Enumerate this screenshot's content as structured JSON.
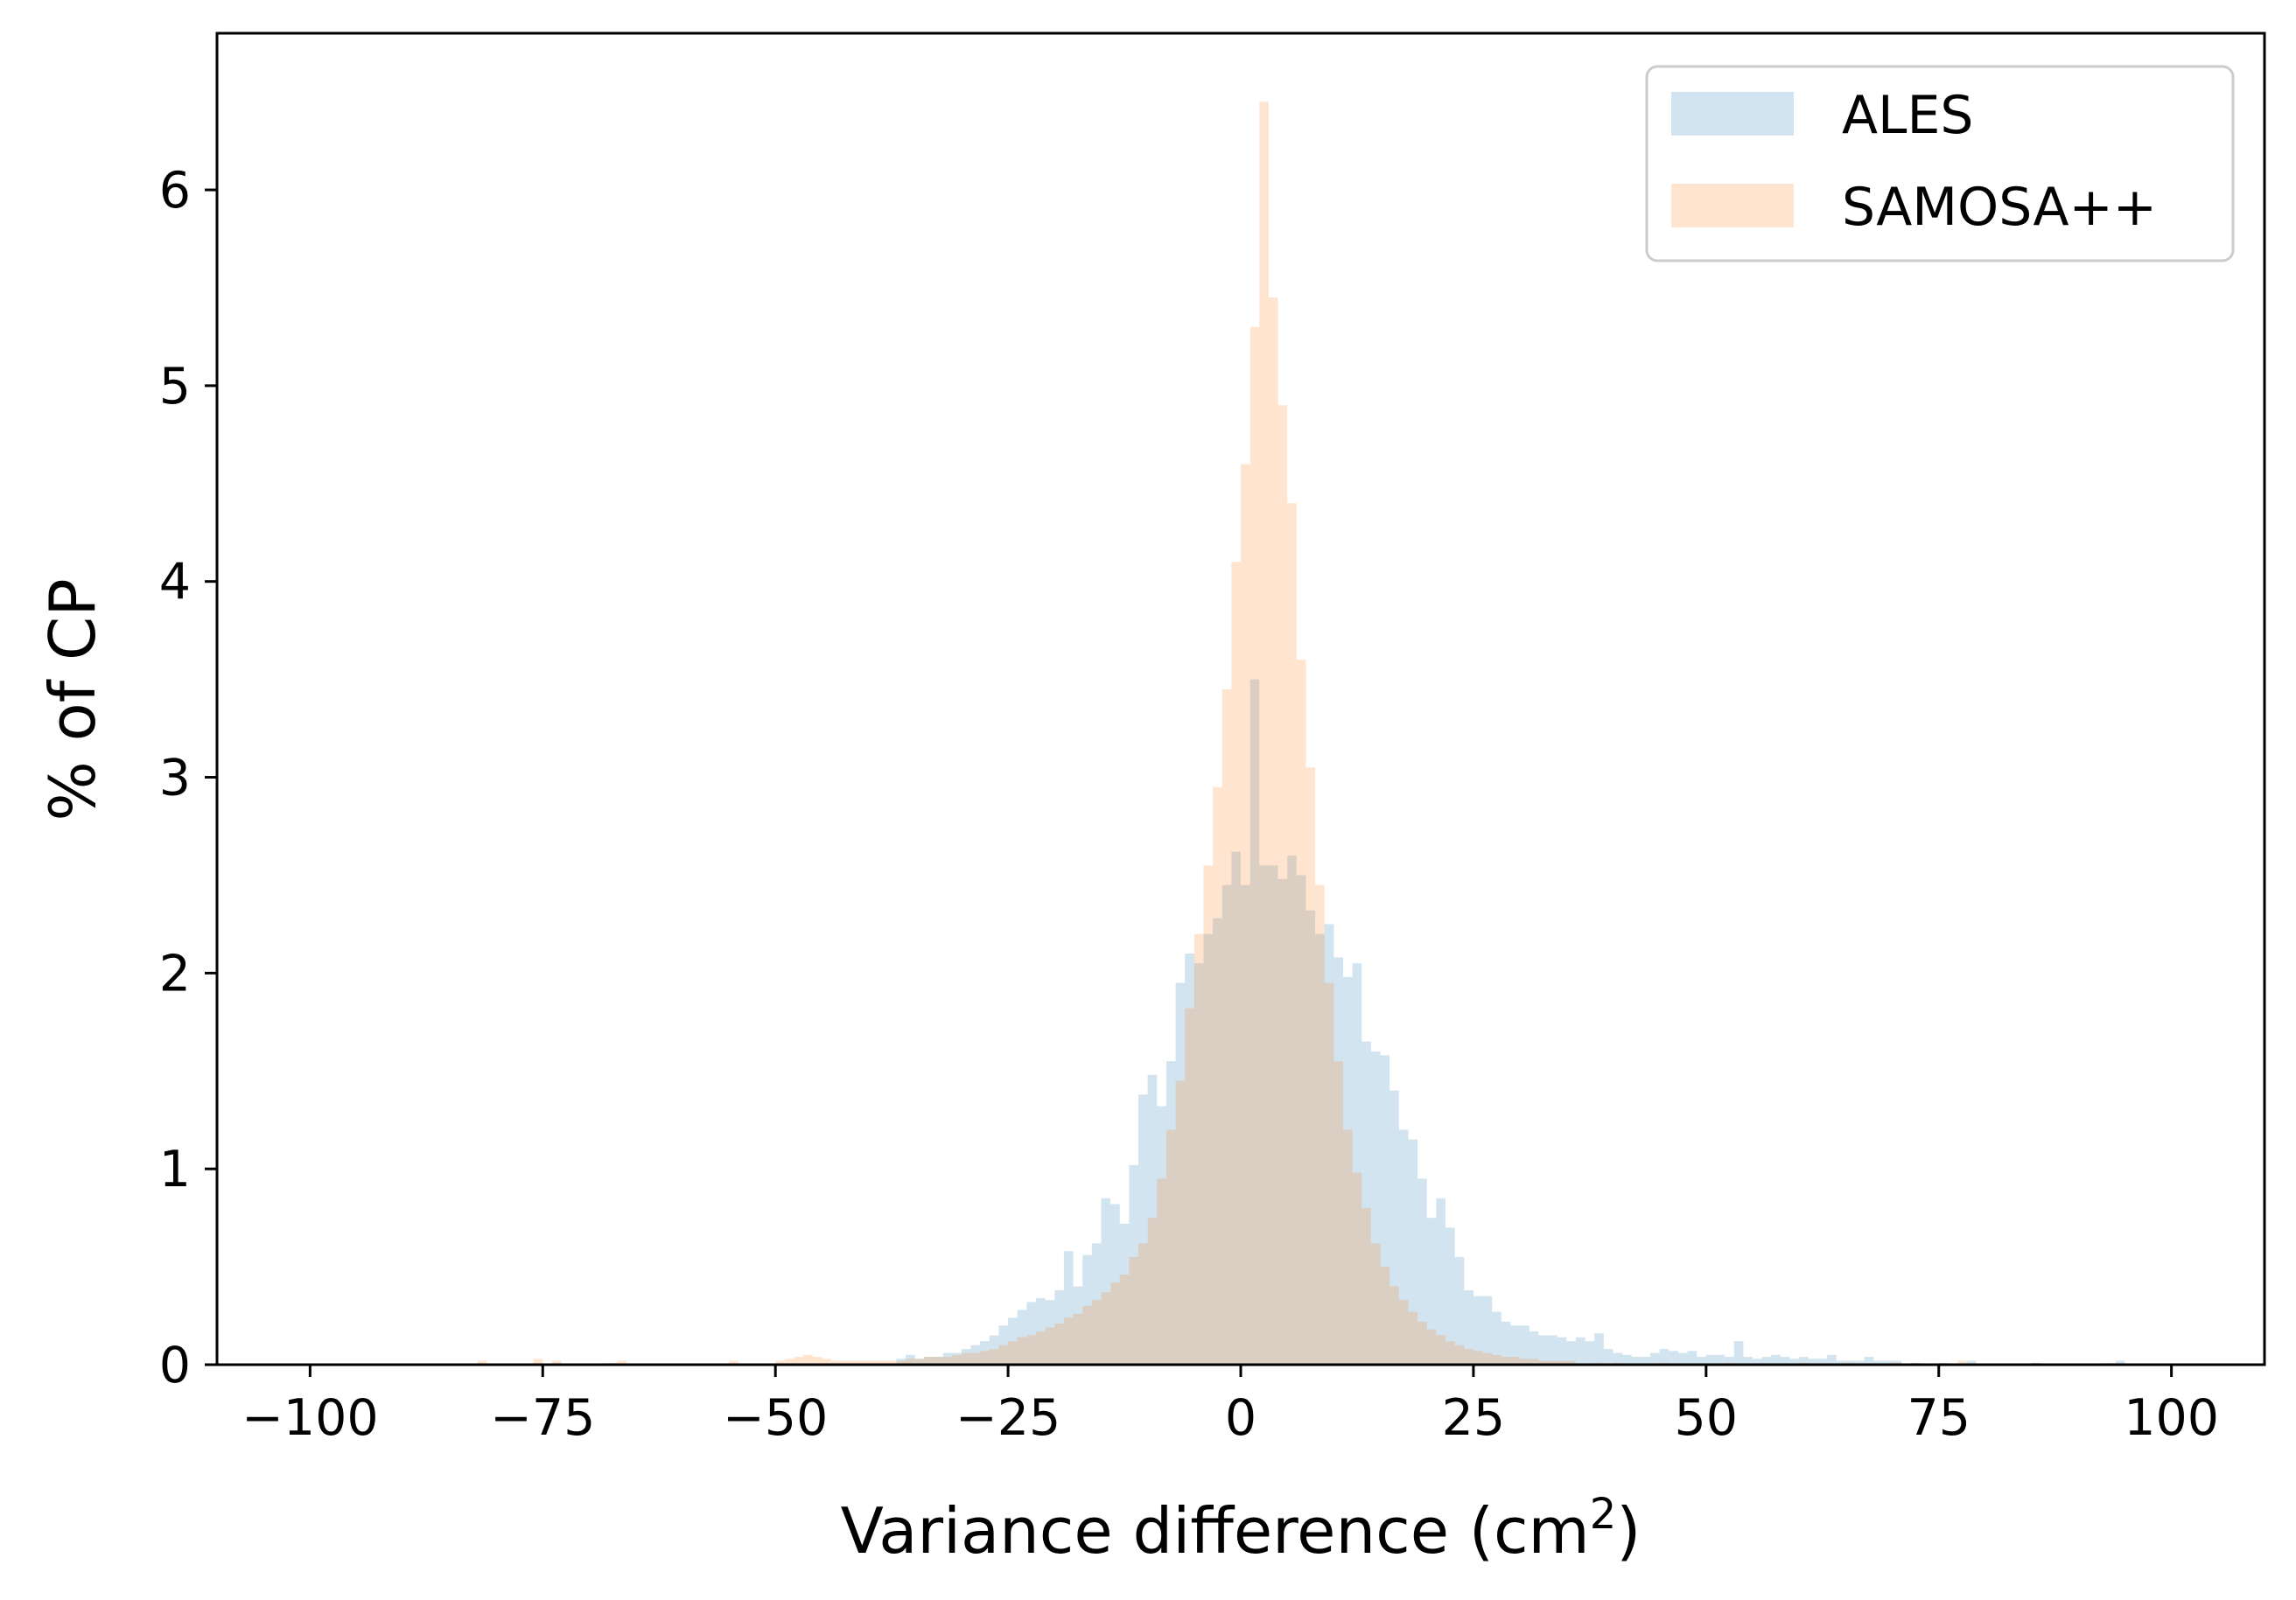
{
  "chart_data": {
    "type": "bar",
    "subtype": "overlapping-histogram",
    "title": "",
    "xlabel": "Variance difference (cm",
    "xlabel_superscript": "2",
    "xlabel_suffix": ")",
    "ylabel": "% of CP",
    "xlim": [
      -110,
      110
    ],
    "ylim": [
      0,
      6.8
    ],
    "xticks": [
      -100,
      -75,
      -50,
      -25,
      0,
      25,
      50,
      75,
      100
    ],
    "xtick_labels": [
      "−100",
      "−75",
      "−50",
      "−25",
      "0",
      "25",
      "50",
      "75",
      "100"
    ],
    "yticks": [
      0,
      1,
      2,
      3,
      4,
      5,
      6
    ],
    "ytick_labels": [
      "0",
      "1",
      "2",
      "3",
      "4",
      "5",
      "6"
    ],
    "grid": false,
    "legend_position": "top-right",
    "bin_width": 1,
    "series": [
      {
        "name": "ALES",
        "color": "#1f77b4",
        "opacity": 0.2,
        "bins": [
          [
            -37,
            0.03
          ],
          [
            -36,
            0.05
          ],
          [
            -35,
            0.03
          ],
          [
            -34,
            0.04
          ],
          [
            -33,
            0.04
          ],
          [
            -32,
            0.06
          ],
          [
            -31,
            0.06
          ],
          [
            -30,
            0.08
          ],
          [
            -29,
            0.1
          ],
          [
            -28,
            0.12
          ],
          [
            -27,
            0.15
          ],
          [
            -26,
            0.2
          ],
          [
            -25,
            0.24
          ],
          [
            -24,
            0.28
          ],
          [
            -23,
            0.32
          ],
          [
            -22,
            0.34
          ],
          [
            -21,
            0.33
          ],
          [
            -20,
            0.38
          ],
          [
            -19,
            0.58
          ],
          [
            -18,
            0.4
          ],
          [
            -17,
            0.56
          ],
          [
            -16,
            0.62
          ],
          [
            -15,
            0.85
          ],
          [
            -14,
            0.82
          ],
          [
            -13,
            0.72
          ],
          [
            -12,
            1.02
          ],
          [
            -11,
            1.38
          ],
          [
            -10,
            1.48
          ],
          [
            -9,
            1.32
          ],
          [
            -8,
            1.55
          ],
          [
            -7,
            1.95
          ],
          [
            -6,
            2.1
          ],
          [
            -5,
            2.05
          ],
          [
            -4,
            2.2
          ],
          [
            -3,
            2.28
          ],
          [
            -2,
            2.45
          ],
          [
            -1,
            2.62
          ],
          [
            0,
            2.45
          ],
          [
            1,
            3.5
          ],
          [
            2,
            2.55
          ],
          [
            3,
            2.55
          ],
          [
            4,
            2.48
          ],
          [
            5,
            2.6
          ],
          [
            6,
            2.5
          ],
          [
            7,
            2.32
          ],
          [
            8,
            2.2
          ],
          [
            9,
            2.25
          ],
          [
            10,
            2.08
          ],
          [
            11,
            1.98
          ],
          [
            12,
            2.05
          ],
          [
            13,
            1.65
          ],
          [
            14,
            1.6
          ],
          [
            15,
            1.58
          ],
          [
            16,
            1.4
          ],
          [
            17,
            1.2
          ],
          [
            18,
            1.15
          ],
          [
            19,
            0.95
          ],
          [
            20,
            0.75
          ],
          [
            21,
            0.85
          ],
          [
            22,
            0.7
          ],
          [
            23,
            0.55
          ],
          [
            24,
            0.38
          ],
          [
            25,
            0.35
          ],
          [
            26,
            0.35
          ],
          [
            27,
            0.27
          ],
          [
            28,
            0.22
          ],
          [
            29,
            0.2
          ],
          [
            30,
            0.2
          ],
          [
            31,
            0.17
          ],
          [
            32,
            0.15
          ],
          [
            33,
            0.15
          ],
          [
            34,
            0.14
          ],
          [
            35,
            0.12
          ],
          [
            36,
            0.14
          ],
          [
            37,
            0.12
          ],
          [
            38,
            0.16
          ],
          [
            39,
            0.08
          ],
          [
            40,
            0.06
          ],
          [
            41,
            0.05
          ],
          [
            42,
            0.04
          ],
          [
            43,
            0.04
          ],
          [
            44,
            0.06
          ],
          [
            45,
            0.08
          ],
          [
            46,
            0.07
          ],
          [
            47,
            0.06
          ],
          [
            48,
            0.07
          ],
          [
            49,
            0.04
          ],
          [
            50,
            0.05
          ],
          [
            51,
            0.05
          ],
          [
            52,
            0.04
          ],
          [
            53,
            0.12
          ],
          [
            54,
            0.04
          ],
          [
            55,
            0.03
          ],
          [
            56,
            0.04
          ],
          [
            57,
            0.05
          ],
          [
            58,
            0.04
          ],
          [
            59,
            0.03
          ],
          [
            60,
            0.04
          ],
          [
            61,
            0.03
          ],
          [
            62,
            0.03
          ],
          [
            63,
            0.05
          ],
          [
            64,
            0.02
          ],
          [
            65,
            0.02
          ],
          [
            66,
            0.02
          ],
          [
            67,
            0.04
          ],
          [
            68,
            0.02
          ],
          [
            69,
            0.02
          ],
          [
            70,
            0.02
          ],
          [
            72,
            0.01
          ],
          [
            75,
            0.01
          ],
          [
            78,
            0.02
          ],
          [
            85,
            0.01
          ],
          [
            94,
            0.02
          ]
        ]
      },
      {
        "name": "SAMOSA++",
        "color": "#ff7f0e",
        "opacity": 0.2,
        "bins": [
          [
            -82,
            0.02
          ],
          [
            -76,
            0.03
          ],
          [
            -74,
            0.02
          ],
          [
            -68,
            0.01
          ],
          [
            -67,
            0.02
          ],
          [
            -55,
            0.02
          ],
          [
            -50,
            0.02
          ],
          [
            -49,
            0.03
          ],
          [
            -48,
            0.04
          ],
          [
            -47,
            0.05
          ],
          [
            -46,
            0.04
          ],
          [
            -45,
            0.03
          ],
          [
            -44,
            0.02
          ],
          [
            -43,
            0.02
          ],
          [
            -42,
            0.02
          ],
          [
            -41,
            0.02
          ],
          [
            -40,
            0.02
          ],
          [
            -39,
            0.02
          ],
          [
            -38,
            0.02
          ],
          [
            -37,
            0.02
          ],
          [
            -36,
            0.03
          ],
          [
            -35,
            0.03
          ],
          [
            -34,
            0.04
          ],
          [
            -33,
            0.04
          ],
          [
            -32,
            0.04
          ],
          [
            -31,
            0.05
          ],
          [
            -30,
            0.06
          ],
          [
            -29,
            0.06
          ],
          [
            -28,
            0.07
          ],
          [
            -27,
            0.08
          ],
          [
            -26,
            0.1
          ],
          [
            -25,
            0.12
          ],
          [
            -24,
            0.14
          ],
          [
            -23,
            0.15
          ],
          [
            -22,
            0.17
          ],
          [
            -21,
            0.19
          ],
          [
            -20,
            0.21
          ],
          [
            -19,
            0.24
          ],
          [
            -18,
            0.26
          ],
          [
            -17,
            0.3
          ],
          [
            -16,
            0.33
          ],
          [
            -15,
            0.37
          ],
          [
            -14,
            0.42
          ],
          [
            -13,
            0.46
          ],
          [
            -12,
            0.55
          ],
          [
            -11,
            0.62
          ],
          [
            -10,
            0.75
          ],
          [
            -9,
            0.95
          ],
          [
            -8,
            1.2
          ],
          [
            -7,
            1.45
          ],
          [
            -6,
            1.82
          ],
          [
            -5,
            2.2
          ],
          [
            -4,
            2.55
          ],
          [
            -3,
            2.95
          ],
          [
            -2,
            3.45
          ],
          [
            -1,
            4.1
          ],
          [
            0,
            4.6
          ],
          [
            1,
            5.3
          ],
          [
            2,
            6.45
          ],
          [
            3,
            5.45
          ],
          [
            4,
            4.9
          ],
          [
            5,
            4.4
          ],
          [
            6,
            3.6
          ],
          [
            7,
            3.05
          ],
          [
            8,
            2.45
          ],
          [
            9,
            1.95
          ],
          [
            10,
            1.55
          ],
          [
            11,
            1.2
          ],
          [
            12,
            0.98
          ],
          [
            13,
            0.8
          ],
          [
            14,
            0.62
          ],
          [
            15,
            0.5
          ],
          [
            16,
            0.4
          ],
          [
            17,
            0.33
          ],
          [
            18,
            0.27
          ],
          [
            19,
            0.22
          ],
          [
            20,
            0.18
          ],
          [
            21,
            0.15
          ],
          [
            22,
            0.12
          ],
          [
            23,
            0.1
          ],
          [
            24,
            0.08
          ],
          [
            25,
            0.07
          ],
          [
            26,
            0.06
          ],
          [
            27,
            0.05
          ],
          [
            28,
            0.04
          ],
          [
            29,
            0.04
          ],
          [
            30,
            0.03
          ],
          [
            31,
            0.03
          ],
          [
            32,
            0.02
          ],
          [
            33,
            0.02
          ],
          [
            34,
            0.02
          ],
          [
            35,
            0.02
          ],
          [
            38,
            0.01
          ],
          [
            40,
            0.01
          ],
          [
            45,
            0.01
          ],
          [
            52,
            0.01
          ],
          [
            60,
            0.01
          ],
          [
            65,
            0.01
          ],
          [
            70,
            0.01
          ],
          [
            77,
            0.02
          ],
          [
            93,
            0.01
          ]
        ]
      }
    ]
  }
}
